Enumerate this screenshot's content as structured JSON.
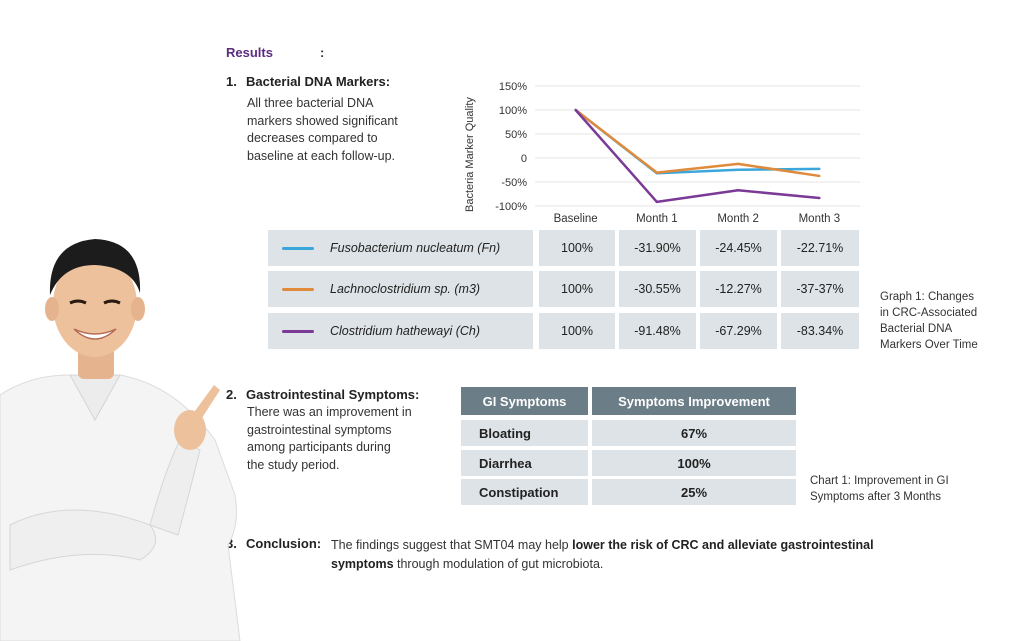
{
  "results": {
    "title": "Results",
    "colon": ":"
  },
  "section1": {
    "num": "1.",
    "heading": "Bacterial DNA Markers:",
    "body_lines": [
      "All three bacterial DNA",
      "markers showed significant",
      "decreases compared to",
      "baseline at each follow-up."
    ]
  },
  "section2": {
    "num": "2.",
    "heading": "Gastrointestinal Symptoms:",
    "body_lines": [
      "There was an improvement in",
      "gastrointestinal symptoms",
      "among participants during",
      "the study period."
    ]
  },
  "section3": {
    "num": "3.",
    "heading": "Conclusion:",
    "text_plain_1": "The findings suggest that SMT04 may help ",
    "text_bold_1": "lower the risk of CRC and alleviate gastrointestinal",
    "text_bold_2": "symptoms",
    "text_plain_2": " through modulation of gut microbiota."
  },
  "chart_data": {
    "type": "line",
    "ylabel": "Bacteria Marker Quality",
    "xlabel": "",
    "categories": [
      "Baseline",
      "Month 1",
      "Month 2",
      "Month 3"
    ],
    "ylim": [
      -100,
      150
    ],
    "yticks": [
      150,
      100,
      50,
      0,
      -50,
      -100
    ],
    "ytick_labels": [
      "150%",
      "100%",
      "50%",
      "0",
      "-50%",
      "-100%"
    ],
    "grid": true,
    "series": [
      {
        "name": "Fusobacterium nucleatum (Fn)",
        "color": "#3aa6dc",
        "values": [
          100,
          -31.9,
          -24.45,
          -22.71
        ],
        "table": [
          "100%",
          "-31.90%",
          "-24.45%",
          "-22.71%"
        ]
      },
      {
        "name": "Lachnoclostridium sp. (m3)",
        "color": "#e08a3c",
        "values": [
          100,
          -30.55,
          -12.27,
          -37.37
        ],
        "table": [
          "100%",
          "-30.55%",
          "-12.27%",
          "-37-37%"
        ]
      },
      {
        "name": "Clostridium hathewayi (Ch)",
        "color": "#7b3a96",
        "values": [
          100,
          -91.48,
          -67.29,
          -83.34
        ],
        "table": [
          "100%",
          "-91.48%",
          "-67.29%",
          "-83.34%"
        ]
      }
    ]
  },
  "graph_caption": [
    "Graph 1: Changes",
    "in CRC-Associated",
    "Bacterial DNA",
    "Markers Over Time"
  ],
  "gi_table": {
    "headers": [
      "GI Symptoms",
      "Symptoms Improvement"
    ],
    "rows": [
      {
        "symptom": "Bloating",
        "improvement": "67%"
      },
      {
        "symptom": "Diarrhea",
        "improvement": "100%"
      },
      {
        "symptom": "Constipation",
        "improvement": "25%"
      }
    ]
  },
  "chart_caption": [
    "Chart 1: Improvement in GI",
    "Symptoms after 3 Months"
  ]
}
